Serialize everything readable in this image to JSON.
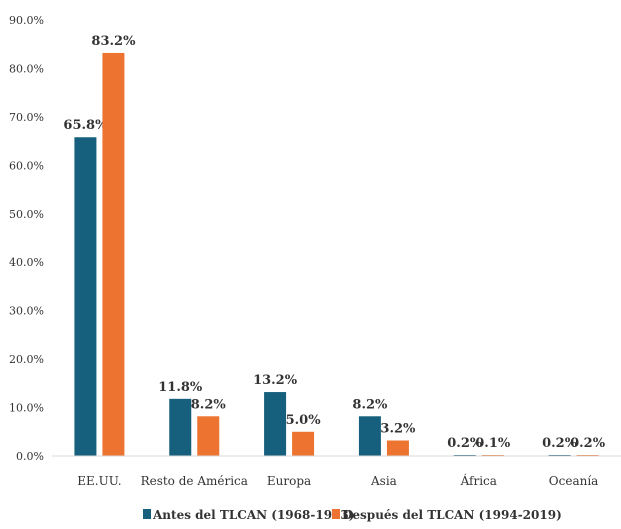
{
  "chart_data": {
    "type": "bar",
    "categories": [
      "EE.UU.",
      "Resto de América",
      "Europa",
      "Asia",
      "África",
      "Oceanía"
    ],
    "series": [
      {
        "name": "Antes del TLCAN (1968-1993)",
        "values": [
          65.8,
          11.8,
          13.2,
          8.2,
          0.2,
          0.2
        ],
        "labels": [
          "65.8%",
          "11.8%",
          "13.2%",
          "8.2%",
          "0.2%",
          "0.2%"
        ],
        "color": "#17607D"
      },
      {
        "name": "Después del TLCAN (1994-2019)",
        "values": [
          83.2,
          8.2,
          5.0,
          3.2,
          0.1,
          0.2
        ],
        "labels": [
          "83.2%",
          "8.2%",
          "5.0%",
          "3.2%",
          "0.1%",
          "0.2%"
        ],
        "color": "#ED7430"
      }
    ],
    "y_ticks": [
      "0.0%",
      "10.0%",
      "20.0%",
      "30.0%",
      "40.0%",
      "50.0%",
      "60.0%",
      "70.0%",
      "80.0%",
      "90.0%"
    ],
    "ylim": [
      0,
      90
    ],
    "grid": false,
    "legend_position": "bottom",
    "title": "",
    "xlabel": "",
    "ylabel": ""
  }
}
